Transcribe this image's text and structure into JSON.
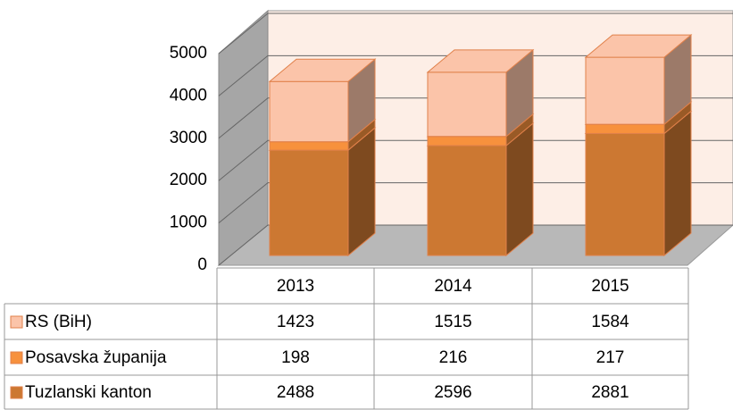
{
  "chart_data": {
    "type": "bar3d_stacked_table",
    "categories": [
      "2013",
      "2014",
      "2015"
    ],
    "series": [
      {
        "name": "RS (BiH)",
        "color": "#fbc4a9",
        "values": [
          1423,
          1515,
          1584
        ]
      },
      {
        "name": "Posavska županija",
        "color": "#f7913d",
        "values": [
          198,
          216,
          217
        ]
      },
      {
        "name": "Tuzlanski kanton",
        "color": "#cc7832",
        "values": [
          2488,
          2596,
          2881
        ]
      }
    ],
    "ylim": [
      0,
      5000
    ],
    "yticks": [
      0,
      1000,
      2000,
      3000,
      4000,
      5000
    ],
    "grid": true
  }
}
